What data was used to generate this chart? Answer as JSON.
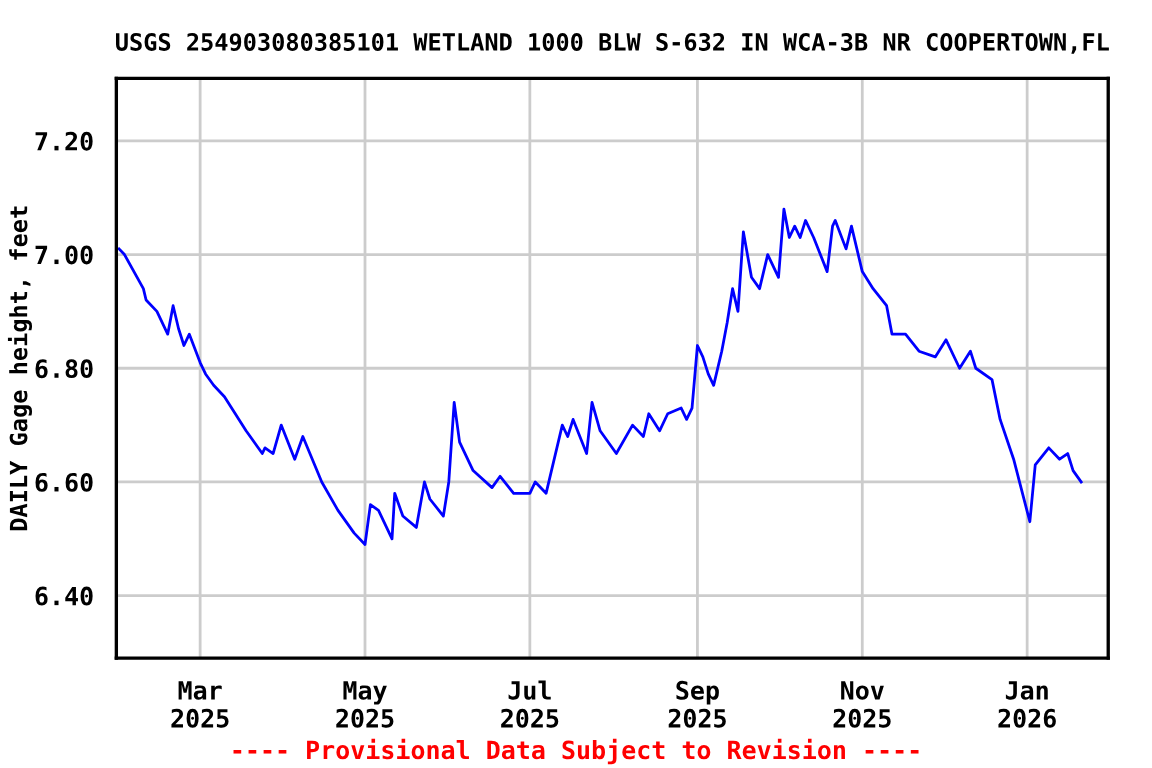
{
  "chart_data": {
    "type": "line",
    "title": "USGS 254903080385101 WETLAND 1000 BLW S-632 IN WCA-3B NR COOPERTOWN,FL",
    "ylabel": "DAILY Gage height, feet",
    "annotations": [
      "---- Provisional Data Subject to Revision ----"
    ],
    "x": [
      "2025-01-30",
      "2025-02-01",
      "2025-02-08",
      "2025-02-09",
      "2025-02-13",
      "2025-02-17",
      "2025-02-19",
      "2025-02-21",
      "2025-02-23",
      "2025-02-25",
      "2025-03-01",
      "2025-03-03",
      "2025-03-06",
      "2025-03-10",
      "2025-03-14",
      "2025-03-18",
      "2025-03-24",
      "2025-03-25",
      "2025-03-28",
      "2025-03-31",
      "2025-04-05",
      "2025-04-08",
      "2025-04-15",
      "2025-04-21",
      "2025-04-27",
      "2025-05-01",
      "2025-05-03",
      "2025-05-06",
      "2025-05-11",
      "2025-05-12",
      "2025-05-15",
      "2025-05-20",
      "2025-05-23",
      "2025-05-25",
      "2025-05-30",
      "2025-06-01",
      "2025-06-03",
      "2025-06-05",
      "2025-06-10",
      "2025-06-17",
      "2025-06-20",
      "2025-06-25",
      "2025-07-01",
      "2025-07-03",
      "2025-07-07",
      "2025-07-13",
      "2025-07-15",
      "2025-07-17",
      "2025-07-22",
      "2025-07-24",
      "2025-07-27",
      "2025-08-02",
      "2025-08-08",
      "2025-08-12",
      "2025-08-14",
      "2025-08-18",
      "2025-08-21",
      "2025-08-26",
      "2025-08-28",
      "2025-08-30",
      "2025-09-01",
      "2025-09-03",
      "2025-09-05",
      "2025-09-07",
      "2025-09-10",
      "2025-09-12",
      "2025-09-14",
      "2025-09-16",
      "2025-09-18",
      "2025-09-21",
      "2025-09-24",
      "2025-09-27",
      "2025-10-01",
      "2025-10-03",
      "2025-10-05",
      "2025-10-07",
      "2025-10-09",
      "2025-10-11",
      "2025-10-14",
      "2025-10-19",
      "2025-10-21",
      "2025-10-22",
      "2025-10-26",
      "2025-10-28",
      "2025-11-01",
      "2025-11-05",
      "2025-11-10",
      "2025-11-12",
      "2025-11-17",
      "2025-11-22",
      "2025-11-28",
      "2025-12-02",
      "2025-12-07",
      "2025-12-11",
      "2025-12-13",
      "2025-12-19",
      "2025-12-22",
      "2025-12-27",
      "2026-01-02",
      "2026-01-04",
      "2026-01-09",
      "2026-01-13",
      "2026-01-16",
      "2026-01-18",
      "2026-01-21"
    ],
    "series": [
      {
        "color": "#0000ff",
        "values": [
          7.01,
          7.0,
          6.94,
          6.92,
          6.9,
          6.86,
          6.91,
          6.87,
          6.84,
          6.86,
          6.81,
          6.79,
          6.77,
          6.75,
          6.72,
          6.69,
          6.65,
          6.66,
          6.65,
          6.7,
          6.64,
          6.68,
          6.6,
          6.55,
          6.51,
          6.49,
          6.56,
          6.55,
          6.5,
          6.58,
          6.54,
          6.52,
          6.6,
          6.57,
          6.54,
          6.6,
          6.74,
          6.67,
          6.62,
          6.59,
          6.61,
          6.58,
          6.58,
          6.6,
          6.58,
          6.7,
          6.68,
          6.71,
          6.65,
          6.74,
          6.69,
          6.65,
          6.7,
          6.68,
          6.72,
          6.69,
          6.72,
          6.73,
          6.71,
          6.73,
          6.84,
          6.82,
          6.79,
          6.77,
          6.83,
          6.88,
          6.94,
          6.9,
          7.04,
          6.96,
          6.94,
          7.0,
          6.96,
          7.08,
          7.03,
          7.05,
          7.03,
          7.06,
          7.03,
          6.97,
          7.05,
          7.06,
          7.01,
          7.05,
          6.97,
          6.94,
          6.91,
          6.86,
          6.86,
          6.83,
          6.82,
          6.85,
          6.8,
          6.83,
          6.8,
          6.78,
          6.71,
          6.64,
          6.53,
          6.63,
          6.66,
          6.64,
          6.65,
          6.62,
          6.6
        ]
      }
    ],
    "xlim": [
      "2025-01-29",
      "2026-01-31"
    ],
    "xticks": [
      {
        "value": "2025-03-01",
        "label": "Mar\n2025"
      },
      {
        "value": "2025-05-01",
        "label": "May\n2025"
      },
      {
        "value": "2025-07-01",
        "label": "Jul\n2025"
      },
      {
        "value": "2025-09-01",
        "label": "Sep\n2025"
      },
      {
        "value": "2025-11-01",
        "label": "Nov\n2025"
      },
      {
        "value": "2026-01-01",
        "label": "Jan\n2026"
      }
    ],
    "ylim": [
      6.29,
      7.31
    ],
    "yticks": [
      {
        "value": 6.4,
        "label": "6.40"
      },
      {
        "value": 6.6,
        "label": "6.60"
      },
      {
        "value": 6.8,
        "label": "6.80"
      },
      {
        "value": 7.0,
        "label": "7.00"
      },
      {
        "value": 7.2,
        "label": "7.20"
      }
    ],
    "grid": true
  }
}
